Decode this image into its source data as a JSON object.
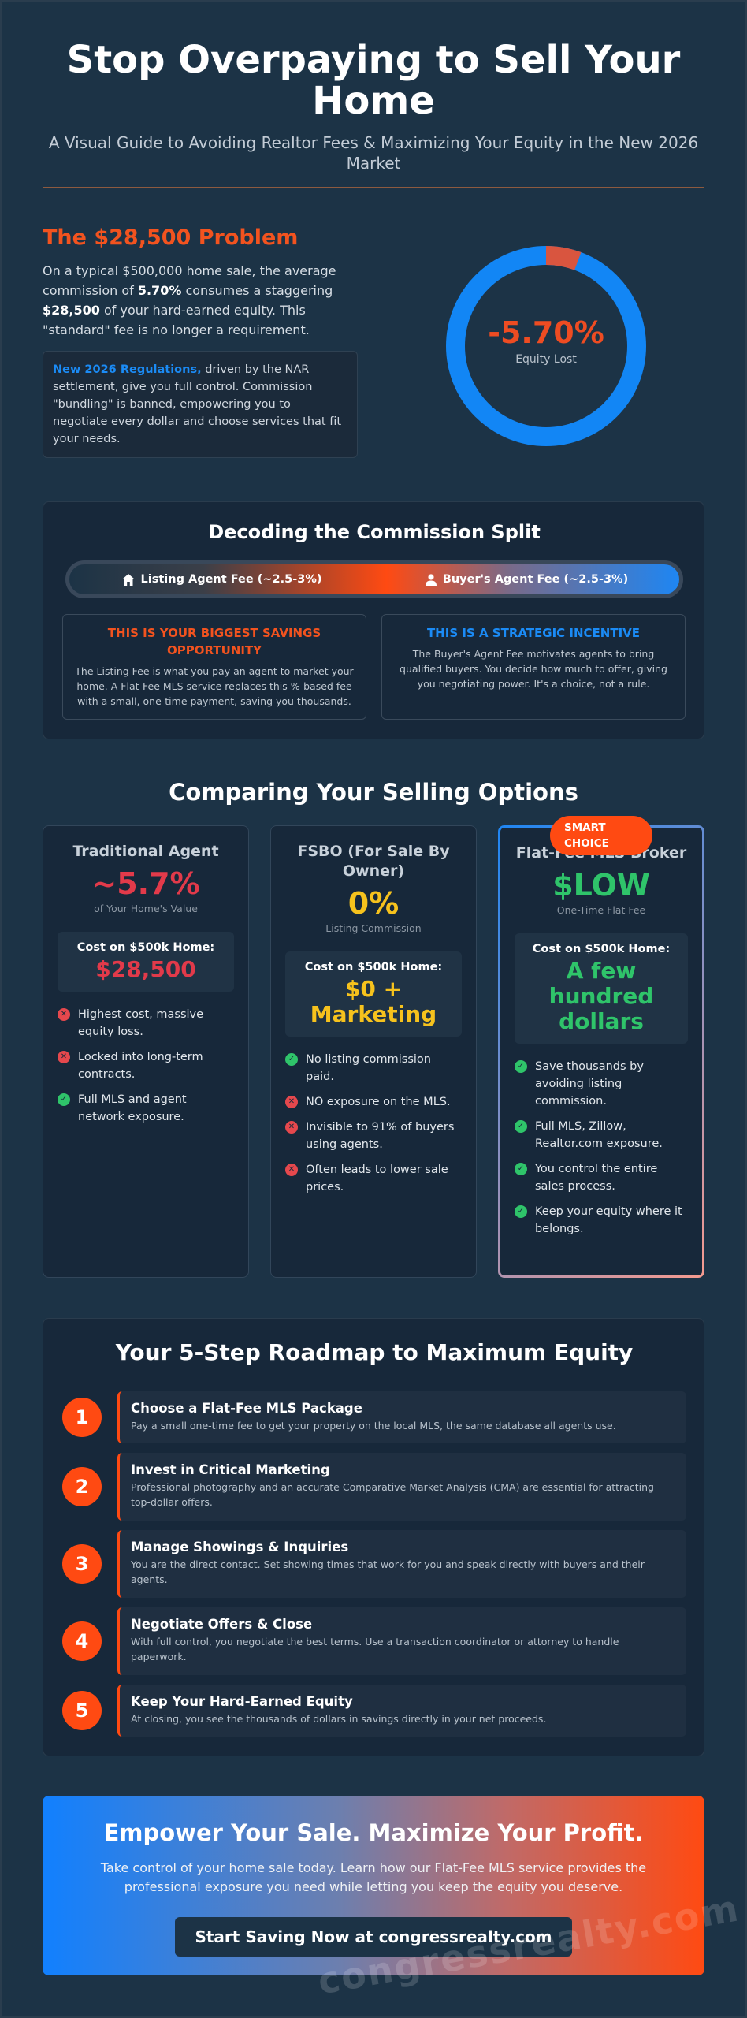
{
  "header": {
    "title": "Stop Overpaying to Sell Your Home",
    "subtitle": "A Visual Guide to Avoiding Realtor Fees & Maximizing Your Equity in the New 2026 Market"
  },
  "problem": {
    "title": "The $28,500 Problem",
    "text_1": "On a typical $500,000 home sale, the average commission of ",
    "text_rate": "5.70%",
    "text_2": " consumes a staggering ",
    "text_amount": "$28,500",
    "text_3": " of your hard-earned equity. This \"standard\" fee is no longer a requirement.",
    "regulation_highlight": "New 2026 Regulations,",
    "regulation_text": " driven by the NAR settlement, give you full control. Commission \"bundling\" is banned, empowering you to negotiate every dollar and choose services that fit your needs.",
    "donut": {
      "value": "-5.70%",
      "label": "Equity Lost",
      "fraction": 0.057,
      "loss_color": "#d9553f",
      "kept_color": "#1286f5"
    }
  },
  "split": {
    "title": "Decoding the Commission Split",
    "left_label": "Listing Agent Fee (~2.5-3%)",
    "right_label": "Buyer's Agent Fee (~2.5-3%)",
    "left_box_title": "THIS IS YOUR BIGGEST SAVINGS OPPORTUNITY",
    "left_box_text": "The Listing Fee is what you pay an agent to market your home. A Flat-Fee MLS service replaces this %-based fee with a small, one-time payment, saving you thousands.",
    "right_box_title": "THIS IS A STRATEGIC INCENTIVE",
    "right_box_text": "The Buyer's Agent Fee motivates agents to bring qualified buyers. You decide how much to offer, giving you negotiating power. It's a choice, not a rule."
  },
  "compare": {
    "title": "Comparing Your Selling Options",
    "badge": "SMART CHOICE",
    "options": [
      {
        "name": "Traditional Agent",
        "value": "~5.7%",
        "value_sub": "of Your Home's Value",
        "cost_label": "Cost on $500k Home:",
        "cost_value": "$28,500",
        "items": [
          {
            "text": "Highest cost, massive equity loss.",
            "type": "x"
          },
          {
            "text": "Locked into long-term contracts.",
            "type": "x"
          },
          {
            "text": "Full MLS and agent network exposure.",
            "type": "check"
          }
        ]
      },
      {
        "name": "FSBO (For Sale By Owner)",
        "value": "0%",
        "value_sub": "Listing Commission",
        "cost_label": "Cost on $500k Home:",
        "cost_value": "$0 + Marketing",
        "items": [
          {
            "text": "No listing commission paid.",
            "type": "check"
          },
          {
            "text": "NO exposure on the MLS.",
            "type": "x"
          },
          {
            "text": "Invisible to 91% of buyers using agents.",
            "type": "x"
          },
          {
            "text": "Often leads to lower sale prices.",
            "type": "x"
          }
        ]
      },
      {
        "name": "Flat-Fee MLS Broker",
        "value": "$LOW",
        "value_sub": "One-Time Flat Fee",
        "cost_label": "Cost on $500k Home:",
        "cost_value": "A few hundred dollars",
        "items": [
          {
            "text": "Save thousands by avoiding listing commission.",
            "type": "check"
          },
          {
            "text": "Full MLS, Zillow, Realtor.com exposure.",
            "type": "check"
          },
          {
            "text": "You control the entire sales process.",
            "type": "check"
          },
          {
            "text": "Keep your equity where it belongs.",
            "type": "check"
          }
        ]
      }
    ]
  },
  "roadmap": {
    "title": "Your 5-Step Roadmap to Maximum Equity",
    "steps": [
      {
        "num": "1",
        "title": "Choose a Flat-Fee MLS Package",
        "text": "Pay a small one-time fee to get your property on the local MLS, the same database all agents use."
      },
      {
        "num": "2",
        "title": "Invest in Critical Marketing",
        "text": "Professional photography and an accurate Comparative Market Analysis (CMA) are essential for attracting top-dollar offers."
      },
      {
        "num": "3",
        "title": "Manage Showings & Inquiries",
        "text": "You are the direct contact. Set showing times that work for you and speak directly with buyers and their agents."
      },
      {
        "num": "4",
        "title": "Negotiate Offers & Close",
        "text": "With full control, you negotiate the best terms. Use a transaction coordinator or attorney to handle paperwork."
      },
      {
        "num": "5",
        "title": "Keep Your Hard-Earned Equity",
        "text": "At closing, you see the thousands of dollars in savings directly in your net proceeds."
      }
    ]
  },
  "cta": {
    "title": "Empower Your Sale. Maximize Your Profit.",
    "text": "Take control of your home sale today. Learn how our Flat-Fee MLS service provides the professional exposure you need while letting you keep the equity you deserve.",
    "button": "Start Saving Now at congressrealty.com",
    "watermark": "congressrealty.com"
  }
}
